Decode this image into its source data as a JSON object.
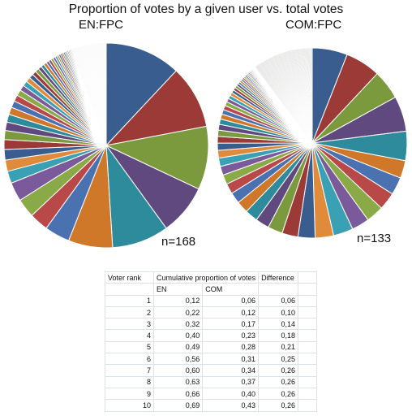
{
  "title": "Proportion of votes by a given user vs. total votes",
  "chart_data": [
    {
      "type": "pie",
      "label": "EN:FPC",
      "n_label": "n=168",
      "slice_count": 168,
      "top_values": [
        0.12,
        0.1,
        0.1,
        0.08,
        0.09,
        0.07,
        0.04,
        0.03,
        0.03,
        0.03
      ]
    },
    {
      "type": "pie",
      "label": "COM:FPC",
      "n_label": "n=133",
      "slice_count": 133,
      "top_values": [
        0.06,
        0.06,
        0.05,
        0.06,
        0.05,
        0.03,
        0.03,
        0.03,
        0.03,
        0.03
      ]
    }
  ],
  "palette": [
    "#3a5d8f",
    "#9b3a37",
    "#7b9a3d",
    "#60497f",
    "#2e8b9c",
    "#d0782a",
    "#4a72b0",
    "#b94848",
    "#8aaa48",
    "#7a5a9a",
    "#3aa0b4",
    "#e08a3c"
  ],
  "table": {
    "headers": [
      "Voter rank",
      "Cumulative proportion of votes",
      "",
      "Difference",
      ""
    ],
    "subheaders": [
      "",
      "EN",
      "COM",
      "",
      ""
    ],
    "rows": [
      [
        "1",
        "0,12",
        "0,06",
        "0,06"
      ],
      [
        "2",
        "0,22",
        "0,12",
        "0,10"
      ],
      [
        "3",
        "0,32",
        "0,17",
        "0,14"
      ],
      [
        "4",
        "0,40",
        "0,23",
        "0,18"
      ],
      [
        "5",
        "0,49",
        "0,28",
        "0,21"
      ],
      [
        "6",
        "0,56",
        "0,31",
        "0,25"
      ],
      [
        "7",
        "0,60",
        "0,34",
        "0,26"
      ],
      [
        "8",
        "0,63",
        "0,37",
        "0,26"
      ],
      [
        "9",
        "0,66",
        "0,40",
        "0,26"
      ],
      [
        "10",
        "0,69",
        "0,43",
        "0,26"
      ]
    ]
  }
}
